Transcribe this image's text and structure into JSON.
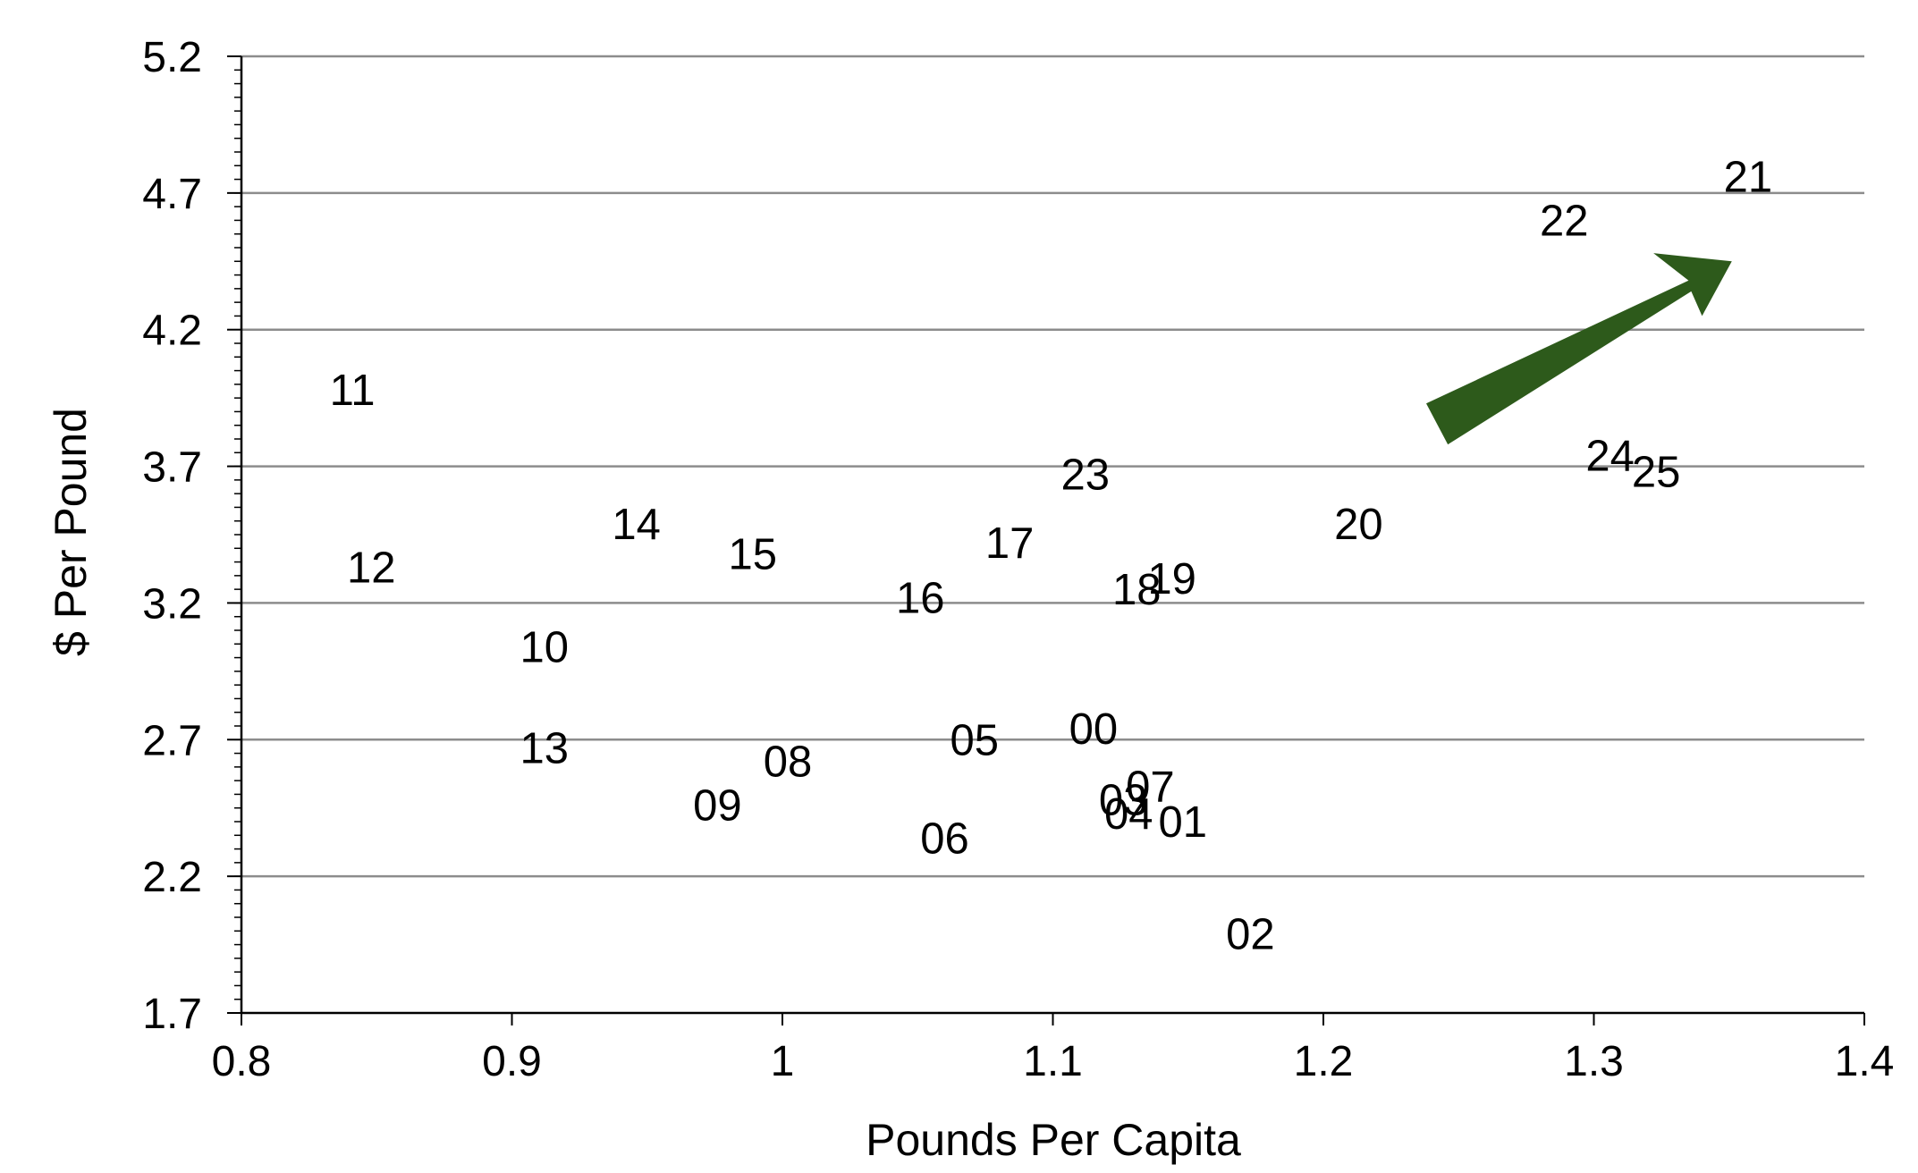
{
  "chart_data": {
    "type": "scatter",
    "xlabel": "Pounds Per Capita",
    "ylabel": "$ Per Pound",
    "xlim": [
      0.8,
      1.4
    ],
    "ylim": [
      1.7,
      5.2
    ],
    "x_ticks": [
      "0.8",
      "0.9",
      "1",
      "1.1",
      "1.2",
      "1.3",
      "1.4"
    ],
    "y_ticks": [
      "1.7",
      "2.2",
      "2.7",
      "3.2",
      "3.7",
      "4.2",
      "4.7",
      "5.2"
    ],
    "grid": "horizontal",
    "points": [
      {
        "label": "00",
        "x": 1.115,
        "y": 2.74
      },
      {
        "label": "01",
        "x": 1.148,
        "y": 2.4
      },
      {
        "label": "02",
        "x": 1.173,
        "y": 1.99
      },
      {
        "label": "03",
        "x": 1.126,
        "y": 2.48
      },
      {
        "label": "04",
        "x": 1.128,
        "y": 2.43
      },
      {
        "label": "05",
        "x": 1.071,
        "y": 2.7
      },
      {
        "label": "06",
        "x": 1.06,
        "y": 2.34
      },
      {
        "label": "07",
        "x": 1.136,
        "y": 2.53
      },
      {
        "label": "08",
        "x": 1.002,
        "y": 2.62
      },
      {
        "label": "09",
        "x": 0.976,
        "y": 2.46
      },
      {
        "label": "10",
        "x": 0.912,
        "y": 3.04
      },
      {
        "label": "11",
        "x": 0.841,
        "y": 3.98
      },
      {
        "label": "12",
        "x": 0.848,
        "y": 3.33
      },
      {
        "label": "13",
        "x": 0.912,
        "y": 2.67
      },
      {
        "label": "14",
        "x": 0.946,
        "y": 3.49
      },
      {
        "label": "15",
        "x": 0.989,
        "y": 3.38
      },
      {
        "label": "16",
        "x": 1.051,
        "y": 3.22
      },
      {
        "label": "17",
        "x": 1.084,
        "y": 3.42
      },
      {
        "label": "18",
        "x": 1.131,
        "y": 3.25
      },
      {
        "label": "19",
        "x": 1.144,
        "y": 3.29
      },
      {
        "label": "20",
        "x": 1.213,
        "y": 3.49
      },
      {
        "label": "21",
        "x": 1.357,
        "y": 4.76
      },
      {
        "label": "22",
        "x": 1.289,
        "y": 4.6
      },
      {
        "label": "23",
        "x": 1.112,
        "y": 3.67
      },
      {
        "label": "24",
        "x": 1.306,
        "y": 3.74
      },
      {
        "label": "25",
        "x": 1.323,
        "y": 3.68
      }
    ],
    "annotation": {
      "type": "arrow",
      "color": "#2d5a1b",
      "direction": "up-right"
    }
  }
}
